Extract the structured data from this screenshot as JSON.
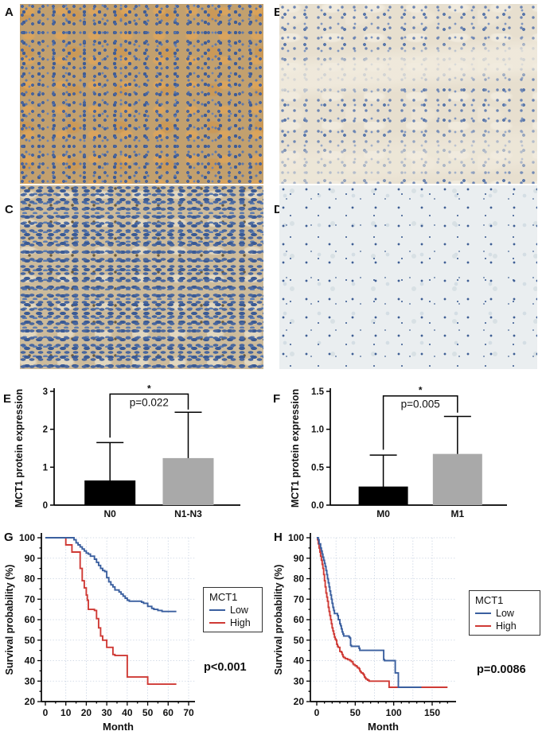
{
  "figure": {
    "panel_labels": {
      "a": "A",
      "b": "B",
      "c": "C",
      "d": "D",
      "e": "E",
      "f": "F",
      "g": "G",
      "h": "H"
    },
    "micrograph_stain_colors": {
      "nuclei_blue": "#4a659c",
      "mct1_brown": "#c2a06e",
      "pale_background": "#eaeef0"
    }
  },
  "chart_data": [
    {
      "panel": "E",
      "type": "bar",
      "ylabel": "MCT1 protein expression",
      "ylim": [
        0,
        3
      ],
      "yticks": [
        0,
        1,
        2,
        3
      ],
      "ytick_labels": [
        "0",
        "1",
        "2",
        "3"
      ],
      "categories": [
        "N0",
        "N1-N3"
      ],
      "values": [
        0.65,
        1.24
      ],
      "error_tops": [
        1.65,
        2.45
      ],
      "bar_colors": [
        "#000000",
        "#a9a9a9"
      ],
      "grid": false,
      "significance": {
        "label": "*",
        "p_text": "p=0.022",
        "left_y": 1.78,
        "right_y": 2.52,
        "top_y": 2.93
      }
    },
    {
      "panel": "F",
      "type": "bar",
      "ylabel": "MCT1 protein expression",
      "ylim": [
        0,
        1.5
      ],
      "yticks": [
        0,
        0.5,
        1,
        1.5
      ],
      "ytick_labels": [
        "0.0",
        "0.5",
        "1.0",
        "1.5"
      ],
      "categories": [
        "M0",
        "M1"
      ],
      "values": [
        0.245,
        0.675
      ],
      "error_tops": [
        0.66,
        1.17
      ],
      "bar_colors": [
        "#000000",
        "#a9a9a9"
      ],
      "grid": false,
      "significance": {
        "label": "*",
        "p_text": "p=0.005",
        "left_y": 0.73,
        "right_y": 1.22,
        "top_y": 1.44
      }
    },
    {
      "panel": "G",
      "type": "line",
      "subtype": "kaplan-meier",
      "xlabel": "Month",
      "ylabel": "Survival probability (%)",
      "xlim": [
        0,
        70
      ],
      "ylim": [
        20,
        100
      ],
      "xticks": [
        0,
        10,
        20,
        30,
        40,
        50,
        60,
        70
      ],
      "yticks": [
        20,
        30,
        40,
        50,
        60,
        70,
        80,
        90,
        100
      ],
      "grid": true,
      "legend_title": "MCT1",
      "legend_position": "right",
      "p_text": "p<0.001",
      "series": [
        {
          "name": "Low",
          "color": "#3a5f9f",
          "points": [
            [
              0,
              100
            ],
            [
              14,
              99
            ],
            [
              15,
              97.5
            ],
            [
              16,
              96.5
            ],
            [
              17,
              95.5
            ],
            [
              18,
              94.5
            ],
            [
              19,
              93.5
            ],
            [
              20,
              92.5
            ],
            [
              21,
              92
            ],
            [
              22,
              91
            ],
            [
              24,
              89.5
            ],
            [
              25,
              88
            ],
            [
              26,
              86.5
            ],
            [
              27,
              85
            ],
            [
              28,
              84
            ],
            [
              29,
              83.5
            ],
            [
              30,
              80.5
            ],
            [
              31,
              78.5
            ],
            [
              32,
              77
            ],
            [
              33,
              76
            ],
            [
              34,
              74.5
            ],
            [
              36,
              73.5
            ],
            [
              37,
              72.5
            ],
            [
              38,
              71.5
            ],
            [
              39,
              70.5
            ],
            [
              40,
              69.5
            ],
            [
              41,
              69
            ],
            [
              47,
              68.5
            ],
            [
              48,
              68
            ],
            [
              50,
              66.5
            ],
            [
              52,
              65.5
            ],
            [
              53,
              65
            ],
            [
              55,
              64.5
            ],
            [
              57,
              64
            ],
            [
              64,
              64
            ]
          ]
        },
        {
          "name": "High",
          "color": "#cf3a35",
          "points": [
            [
              0,
              100
            ],
            [
              10,
              96.5
            ],
            [
              13,
              93
            ],
            [
              17,
              85
            ],
            [
              18,
              79
            ],
            [
              19,
              75.5
            ],
            [
              20,
              72
            ],
            [
              20.5,
              69.5
            ],
            [
              21,
              65
            ],
            [
              24,
              64.5
            ],
            [
              25,
              60.5
            ],
            [
              26,
              56
            ],
            [
              27,
              52
            ],
            [
              28,
              50
            ],
            [
              30,
              46.5
            ],
            [
              33,
              43
            ],
            [
              34,
              42.5
            ],
            [
              40,
              32
            ],
            [
              50,
              28.5
            ],
            [
              64,
              28.5
            ]
          ]
        }
      ]
    },
    {
      "panel": "H",
      "type": "line",
      "subtype": "kaplan-meier",
      "xlabel": "Month",
      "ylabel": "Survival probability (%)",
      "xlim": [
        0,
        172
      ],
      "ylim": [
        20,
        100
      ],
      "xticks": [
        0,
        50,
        100,
        150
      ],
      "yticks": [
        20,
        30,
        40,
        50,
        60,
        70,
        80,
        90,
        100
      ],
      "grid": true,
      "legend_title": "MCT1",
      "legend_position": "right",
      "p_text": "p=0.0086",
      "series": [
        {
          "name": "Low",
          "color": "#3a5f9f",
          "points": [
            [
              0,
              100
            ],
            [
              2,
              99
            ],
            [
              3,
              97
            ],
            [
              5,
              95
            ],
            [
              6,
              93.5
            ],
            [
              7,
              92
            ],
            [
              8,
              90.5
            ],
            [
              9,
              89
            ],
            [
              10,
              87.5
            ],
            [
              11,
              86
            ],
            [
              12,
              84
            ],
            [
              13,
              82
            ],
            [
              14,
              80
            ],
            [
              15,
              78
            ],
            [
              16,
              76
            ],
            [
              17,
              74
            ],
            [
              18,
              72
            ],
            [
              19,
              70
            ],
            [
              20,
              68
            ],
            [
              21,
              66
            ],
            [
              22,
              64.5
            ],
            [
              23,
              63
            ],
            [
              27,
              62
            ],
            [
              28,
              60
            ],
            [
              30,
              58
            ],
            [
              31,
              57
            ],
            [
              32,
              55.5
            ],
            [
              33,
              54
            ],
            [
              34,
              53
            ],
            [
              35,
              52
            ],
            [
              42,
              51.5
            ],
            [
              43,
              51
            ],
            [
              44,
              47.5
            ],
            [
              45,
              47
            ],
            [
              55,
              46
            ],
            [
              56,
              45
            ],
            [
              87,
              40.5
            ],
            [
              88,
              40
            ],
            [
              102,
              34
            ],
            [
              106,
              27
            ],
            [
              136,
              27
            ]
          ]
        },
        {
          "name": "High",
          "color": "#cf3a35",
          "points": [
            [
              0,
              100
            ],
            [
              1,
              99
            ],
            [
              2,
              97
            ],
            [
              3,
              95
            ],
            [
              4,
              93
            ],
            [
              5,
              91
            ],
            [
              6,
              89
            ],
            [
              7,
              87
            ],
            [
              8,
              85
            ],
            [
              9,
              82
            ],
            [
              10,
              79
            ],
            [
              11,
              76
            ],
            [
              12,
              73
            ],
            [
              13,
              71
            ],
            [
              14,
              69
            ],
            [
              15,
              66
            ],
            [
              16,
              64
            ],
            [
              17,
              62
            ],
            [
              18,
              60
            ],
            [
              19,
              58
            ],
            [
              20,
              56
            ],
            [
              21,
              54.5
            ],
            [
              22,
              53
            ],
            [
              23,
              51.5
            ],
            [
              24,
              50.5
            ],
            [
              25,
              50
            ],
            [
              26,
              48
            ],
            [
              27,
              47
            ],
            [
              28,
              46.5
            ],
            [
              30,
              44.5
            ],
            [
              32,
              44
            ],
            [
              33,
              43
            ],
            [
              34,
              42
            ],
            [
              35,
              41.5
            ],
            [
              37,
              41
            ],
            [
              40,
              40.5
            ],
            [
              43,
              40
            ],
            [
              45,
              39.5
            ],
            [
              47,
              38.5
            ],
            [
              48,
              38
            ],
            [
              50,
              37.5
            ],
            [
              52,
              37
            ],
            [
              53,
              36.5
            ],
            [
              55,
              36
            ],
            [
              56,
              35
            ],
            [
              57,
              34.5
            ],
            [
              58,
              34
            ],
            [
              60,
              33.5
            ],
            [
              61,
              33
            ],
            [
              62,
              32
            ],
            [
              63,
              31.5
            ],
            [
              64,
              31
            ],
            [
              66,
              30.5
            ],
            [
              68,
              30
            ],
            [
              94,
              27
            ],
            [
              170,
              27
            ]
          ]
        }
      ]
    }
  ]
}
